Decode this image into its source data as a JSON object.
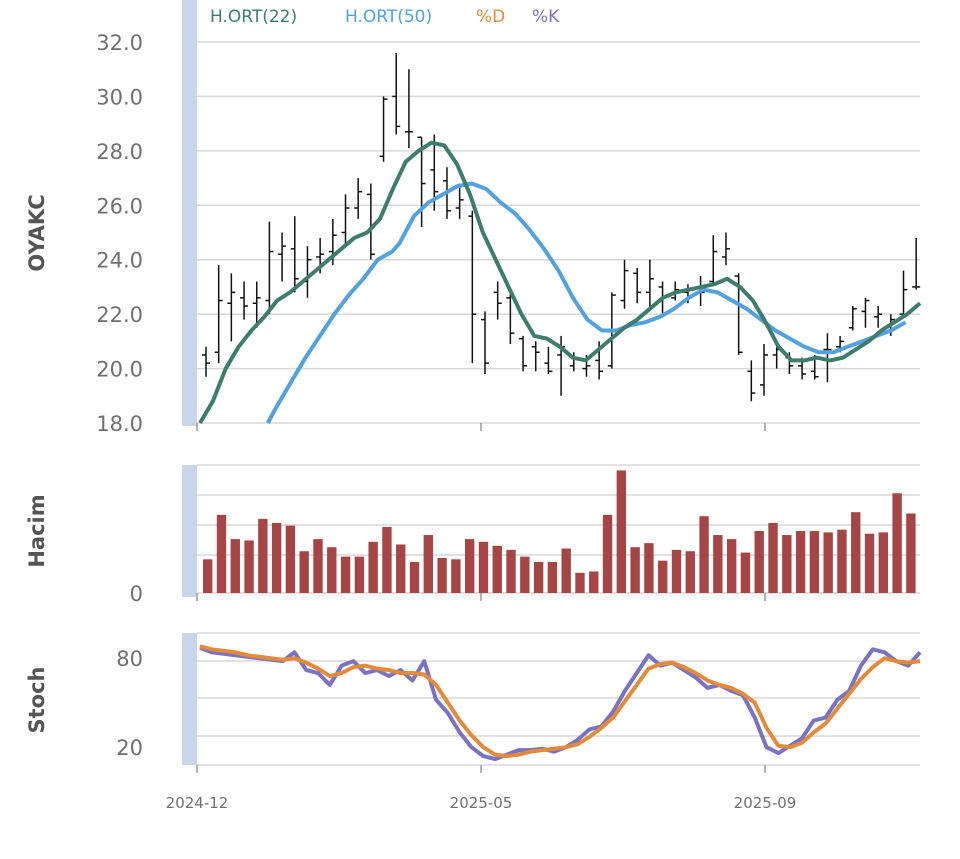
{
  "chart_data": [
    {
      "type": "ohlc",
      "ylabel": "OYAKC",
      "ylim": [
        18,
        32.7
      ],
      "yticks": [
        "32.0",
        "30.0",
        "28.0",
        "26.0",
        "24.0",
        "22.0",
        "20.0",
        "18.0"
      ],
      "xticks": [
        "2024-12",
        "2025-05",
        "2025-09"
      ],
      "legend": [
        {
          "name": "H.ORT(22)",
          "color": "#3e7d6b"
        },
        {
          "name": "H.ORT(50)",
          "color": "#52a2e0"
        },
        {
          "name": "%D",
          "color": "#e38b3a"
        },
        {
          "name": "%K",
          "color": "#7a72c2"
        }
      ],
      "bars": [
        [
          20.8,
          19.7,
          20.5,
          20.2
        ],
        [
          23.8,
          20.2,
          20.6,
          22.5
        ],
        [
          23.5,
          21.0,
          22.4,
          22.8
        ],
        [
          23.2,
          21.8,
          22.6,
          22.3
        ],
        [
          23.2,
          21.5,
          22.4,
          22.6
        ],
        [
          25.4,
          22.0,
          22.5,
          24.3
        ],
        [
          25.0,
          23.2,
          24.2,
          24.5
        ],
        [
          25.6,
          22.8,
          24.4,
          23.3
        ],
        [
          24.5,
          22.6,
          23.2,
          24.0
        ],
        [
          24.8,
          23.5,
          24.1,
          24.2
        ],
        [
          25.5,
          23.8,
          24.3,
          24.9
        ],
        [
          26.4,
          24.5,
          25.0,
          25.9
        ],
        [
          27.0,
          25.5,
          25.9,
          26.5
        ],
        [
          26.8,
          24.0,
          26.4,
          24.2
        ],
        [
          30.0,
          27.6,
          27.8,
          29.9
        ],
        [
          31.6,
          28.6,
          30.0,
          28.9
        ],
        [
          31.0,
          28.1,
          28.7,
          28.7
        ],
        [
          28.5,
          25.2,
          28.5,
          26.8
        ],
        [
          28.6,
          25.8,
          27.3,
          26.5
        ],
        [
          27.4,
          25.5,
          26.9,
          25.8
        ],
        [
          26.8,
          25.5,
          25.9,
          26.2
        ],
        [
          25.8,
          20.2,
          25.6,
          22.0
        ],
        [
          22.1,
          19.8,
          21.8,
          20.2
        ],
        [
          23.2,
          21.8,
          22.8,
          22.4
        ],
        [
          22.9,
          20.9,
          22.6,
          21.3
        ],
        [
          21.2,
          19.9,
          21.1,
          20.1
        ],
        [
          21.0,
          19.9,
          20.8,
          20.6
        ],
        [
          20.8,
          19.8,
          20.2,
          19.9
        ],
        [
          21.2,
          19.0,
          20.5,
          20.8
        ],
        [
          20.6,
          19.9,
          20.1,
          20.4
        ],
        [
          20.5,
          19.7,
          20.0,
          20.1
        ],
        [
          21.0,
          19.6,
          20.3,
          19.9
        ],
        [
          22.8,
          20.0,
          20.1,
          22.7
        ],
        [
          24.0,
          22.2,
          22.5,
          23.6
        ],
        [
          23.7,
          22.4,
          23.5,
          22.8
        ],
        [
          24.0,
          22.2,
          22.8,
          23.3
        ],
        [
          23.2,
          21.9,
          23.0,
          22.0
        ],
        [
          23.2,
          22.5,
          22.6,
          22.9
        ],
        [
          23.1,
          22.4,
          22.8,
          22.6
        ],
        [
          23.4,
          22.3,
          23.0,
          22.8
        ],
        [
          24.9,
          23.1,
          23.2,
          24.3
        ],
        [
          25.0,
          23.8,
          24.1,
          24.4
        ],
        [
          23.5,
          20.5,
          23.4,
          20.6
        ],
        [
          20.3,
          18.8,
          19.9,
          19.1
        ],
        [
          20.9,
          19.0,
          19.4,
          20.5
        ],
        [
          20.8,
          20.0,
          20.5,
          20.7
        ],
        [
          20.6,
          19.8,
          20.4,
          20.1
        ],
        [
          20.4,
          19.6,
          20.1,
          19.8
        ],
        [
          20.5,
          19.6,
          19.9,
          19.7
        ],
        [
          21.3,
          19.5,
          20.7,
          20.7
        ],
        [
          21.2,
          20.6,
          20.8,
          21.0
        ],
        [
          22.3,
          21.4,
          21.5,
          22.2
        ],
        [
          22.6,
          21.5,
          22.1,
          22.5
        ],
        [
          22.3,
          21.5,
          21.9,
          22.0
        ],
        [
          22.0,
          21.2,
          21.6,
          21.8
        ],
        [
          23.6,
          21.9,
          22.0,
          22.9
        ],
        [
          24.8,
          22.9,
          23.0,
          23.0
        ]
      ],
      "series": [
        {
          "name": "H.ORT(22)",
          "values": [
            18.0,
            18.8,
            20.0,
            20.8,
            21.4,
            21.9,
            22.5,
            22.8,
            23.2,
            23.6,
            24.0,
            24.4,
            24.8,
            25.0,
            25.5,
            26.6,
            27.6,
            28.0,
            28.3,
            28.2,
            27.5,
            26.4,
            25.0,
            24.0,
            23.0,
            22.0,
            21.2,
            21.1,
            20.8,
            20.4,
            20.3,
            20.7,
            21.1,
            21.5,
            21.8,
            22.2,
            22.6,
            22.8,
            22.9,
            23.0,
            23.1,
            23.3,
            23.0,
            22.5,
            21.7,
            20.8,
            20.3,
            20.3,
            20.4,
            20.3,
            20.4,
            20.7,
            21.0,
            21.4,
            21.7,
            22.0,
            22.4
          ]
        }
      ],
      "ma50": [
        [
          9.8,
          18.0
        ],
        [
          11,
          18.6
        ],
        [
          13,
          19.5
        ],
        [
          15,
          20.4
        ],
        [
          17,
          21.2
        ],
        [
          19,
          22.0
        ],
        [
          21,
          22.7
        ],
        [
          23,
          23.3
        ],
        [
          25,
          24.0
        ],
        [
          27,
          24.3
        ],
        [
          28,
          24.6
        ],
        [
          30,
          25.6
        ],
        [
          32,
          26.1
        ],
        [
          34,
          26.4
        ],
        [
          36,
          26.7
        ],
        [
          38,
          26.8
        ],
        [
          40,
          26.6
        ],
        [
          42,
          26.1
        ],
        [
          44,
          25.7
        ],
        [
          46,
          25.1
        ],
        [
          48,
          24.4
        ],
        [
          50,
          23.6
        ],
        [
          52,
          22.6
        ],
        [
          54,
          21.8
        ],
        [
          56,
          21.4
        ],
        [
          58,
          21.4
        ],
        [
          60,
          21.6
        ],
        [
          62,
          21.7
        ],
        [
          64,
          21.9
        ],
        [
          66,
          22.2
        ],
        [
          68,
          22.6
        ],
        [
          70,
          22.9
        ],
        [
          72,
          22.8
        ],
        [
          74,
          22.5
        ],
        [
          76,
          22.2
        ],
        [
          78,
          21.8
        ],
        [
          80,
          21.4
        ],
        [
          82,
          21.1
        ],
        [
          84,
          20.8
        ],
        [
          86,
          20.6
        ],
        [
          88,
          20.6
        ],
        [
          90,
          20.8
        ],
        [
          92,
          21.0
        ],
        [
          94,
          21.2
        ],
        [
          96,
          21.4
        ],
        [
          98,
          21.7
        ]
      ]
    },
    {
      "type": "bar",
      "ylabel": "Hacim",
      "ytick": "0",
      "color": "#a64545",
      "values": [
        25,
        58,
        40,
        39,
        55,
        52,
        50,
        31,
        40,
        34,
        27,
        27,
        38,
        49,
        36,
        23,
        43,
        26,
        25,
        40,
        38,
        35,
        32,
        27,
        23,
        23,
        33,
        15,
        16,
        58,
        91,
        34,
        37,
        24,
        32,
        31,
        57,
        43,
        40,
        30,
        46,
        52,
        43,
        46,
        46,
        45,
        47,
        60,
        44,
        45,
        74,
        59
      ],
      "ylim": [
        0,
        95
      ]
    },
    {
      "type": "line",
      "ylabel": "Stoch",
      "yticks": [
        "80",
        "20"
      ],
      "ylim": [
        8,
        97
      ],
      "series": [
        {
          "name": "%K",
          "values": [
            87,
            84,
            83,
            82,
            81,
            80,
            79,
            78,
            84,
            72,
            70,
            62,
            75,
            78,
            70,
            72,
            68,
            72,
            65,
            78,
            52,
            43,
            30,
            20,
            14,
            12,
            15,
            18,
            18,
            19,
            17,
            20,
            25,
            32,
            34,
            44,
            58,
            70,
            82,
            75,
            77,
            72,
            67,
            60,
            62,
            58,
            55,
            40,
            20,
            16,
            21,
            26,
            38,
            40,
            52,
            58,
            75,
            86,
            84,
            78,
            75,
            84
          ]
        },
        {
          "name": "%D",
          "values": [
            88,
            86,
            85,
            84,
            82,
            81,
            80,
            79,
            80,
            77,
            73,
            68,
            70,
            74,
            75,
            73,
            72,
            70,
            70,
            69,
            62,
            50,
            38,
            28,
            20,
            15,
            14,
            15,
            17,
            18,
            19,
            20,
            22,
            27,
            33,
            40,
            51,
            62,
            73,
            76,
            77,
            74,
            70,
            65,
            62,
            60,
            56,
            50,
            33,
            21,
            20,
            23,
            30,
            36,
            46,
            56,
            66,
            74,
            80,
            78,
            77,
            78
          ]
        }
      ]
    }
  ]
}
